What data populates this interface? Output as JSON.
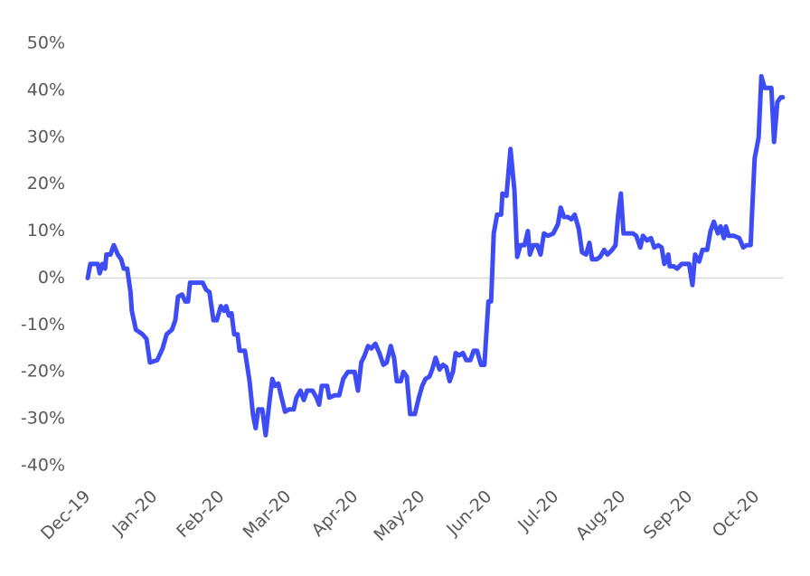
{
  "chart_data": {
    "type": "line",
    "x": [
      0,
      0.04,
      0.09,
      0.15,
      0.18,
      0.22,
      0.26,
      0.28,
      0.34,
      0.39,
      0.45,
      0.5,
      0.54,
      0.59,
      0.64,
      0.66,
      0.72,
      0.82,
      0.88,
      0.93,
      1.04,
      1.12,
      1.18,
      1.26,
      1.31,
      1.35,
      1.41,
      1.46,
      1.5,
      1.53,
      1.66,
      1.72,
      1.77,
      1.82,
      1.88,
      1.93,
      1.99,
      2.04,
      2.07,
      2.11,
      2.15,
      2.19,
      2.24,
      2.27,
      2.35,
      2.42,
      2.47,
      2.51,
      2.55,
      2.61,
      2.66,
      2.72,
      2.76,
      2.8,
      2.85,
      2.89,
      2.95,
      3.01,
      3.08,
      3.12,
      3.18,
      3.23,
      3.28,
      3.36,
      3.42,
      3.46,
      3.5,
      3.58,
      3.61,
      3.69,
      3.76,
      3.82,
      3.89,
      3.99,
      4.04,
      4.09,
      4.14,
      4.19,
      4.24,
      4.3,
      4.36,
      4.42,
      4.47,
      4.53,
      4.58,
      4.62,
      4.68,
      4.72,
      4.77,
      4.82,
      4.89,
      4.95,
      5,
      5.05,
      5.11,
      5.15,
      5.2,
      5.26,
      5.31,
      5.36,
      5.41,
      5.46,
      5.5,
      5.55,
      5.61,
      5.66,
      5.72,
      5.77,
      5.82,
      5.88,
      5.93,
      5.99,
      6.03,
      6.07,
      6.12,
      6.18,
      6.2,
      6.26,
      6.32,
      6.38,
      6.42,
      6.47,
      6.53,
      6.58,
      6.61,
      6.66,
      6.72,
      6.77,
      6.82,
      6.88,
      6.96,
      7.03,
      7.07,
      7.12,
      7.18,
      7.23,
      7.28,
      7.34,
      7.39,
      7.45,
      7.5,
      7.54,
      7.61,
      7.66,
      7.72,
      7.77,
      7.84,
      7.89,
      7.93,
      7.97,
      8.01,
      8.07,
      8.15,
      8.2,
      8.26,
      8.3,
      8.36,
      8.42,
      8.47,
      8.53,
      8.58,
      8.62,
      8.68,
      8.7,
      8.76,
      8.81,
      8.88,
      8.93,
      8.99,
      9.04,
      9.08,
      9.14,
      9.19,
      9.26,
      9.31,
      9.36,
      9.42,
      9.46,
      9.51,
      9.54,
      9.58,
      9.66,
      9.74,
      9.8,
      9.85,
      9.91,
      9.93,
      9.97,
      10.03,
      10.07,
      10.12,
      10.18,
      10.22,
      10.26,
      10.31,
      10.36,
      10.39
    ],
    "series": [
      {
        "color": "#3d4cf5",
        "values": [
          0,
          3,
          3,
          3,
          1,
          3,
          2,
          5,
          5,
          7,
          5,
          4,
          2,
          2,
          -3,
          -7,
          -11,
          -12,
          -13,
          -18,
          -17.5,
          -15,
          -12,
          -11,
          -9,
          -4,
          -3.5,
          -5,
          -5,
          -1,
          -1,
          -1,
          -2.5,
          -3,
          -9,
          -9,
          -6,
          -7,
          -6,
          -8,
          -7.5,
          -12,
          -12,
          -15.5,
          -15.5,
          -22,
          -29,
          -32,
          -28,
          -28,
          -33.5,
          -26,
          -21.5,
          -23,
          -22.5,
          -25,
          -28.5,
          -28,
          -28,
          -25.5,
          -24,
          -26,
          -24,
          -24,
          -25.5,
          -27,
          -23,
          -23,
          -25.5,
          -25,
          -25,
          -21.5,
          -20,
          -20,
          -24,
          -18,
          -16.5,
          -14.5,
          -15,
          -14,
          -16,
          -18.5,
          -18,
          -14.5,
          -17,
          -22,
          -22,
          -20,
          -21,
          -29,
          -29,
          -25.5,
          -23,
          -21.5,
          -21,
          -19.5,
          -17,
          -19.5,
          -18.5,
          -19,
          -22,
          -20,
          -16,
          -16.5,
          -16,
          -17.5,
          -17.5,
          -15.5,
          -15.5,
          -18.5,
          -18.5,
          -5,
          -5,
          9.5,
          13.5,
          13.5,
          18,
          17.5,
          27.5,
          18.5,
          4.5,
          7,
          7,
          10,
          5,
          7,
          7,
          5,
          9.5,
          9,
          9.5,
          11.5,
          15,
          13,
          13,
          12.5,
          13.5,
          10.5,
          5.5,
          5,
          7.5,
          4,
          4,
          4.5,
          6,
          5,
          6,
          7,
          13.5,
          18,
          9.5,
          9.5,
          9.5,
          9,
          6.5,
          9,
          8,
          8.5,
          6.5,
          7,
          6.5,
          3,
          5,
          2.5,
          2.5,
          2,
          3,
          3,
          3,
          -1.5,
          5,
          3.5,
          6,
          6,
          10,
          12,
          9.5,
          11,
          8.5,
          11,
          9,
          9,
          8.5,
          6.5,
          7,
          7,
          13.5,
          25.5,
          30,
          43,
          40.5,
          40.5,
          40.5,
          29,
          37.5,
          38.5,
          38.5
        ]
      }
    ],
    "xlim": [
      0,
      10.4
    ],
    "xticks": [
      {
        "value": 0,
        "label": "Dec-19"
      },
      {
        "value": 1,
        "label": "Jan-20"
      },
      {
        "value": 2,
        "label": "Feb-20"
      },
      {
        "value": 3,
        "label": "Mar-20"
      },
      {
        "value": 4,
        "label": "Apr-20"
      },
      {
        "value": 5,
        "label": "May-20"
      },
      {
        "value": 6,
        "label": "Jun-20"
      },
      {
        "value": 7,
        "label": "Jul-20"
      },
      {
        "value": 8,
        "label": "Aug-20"
      },
      {
        "value": 9,
        "label": "Sep-20"
      },
      {
        "value": 10,
        "label": "Oct-20"
      }
    ],
    "ylim": [
      -40,
      50
    ],
    "yticks": [
      {
        "value": -40,
        "label": "-40%"
      },
      {
        "value": -30,
        "label": "-30%"
      },
      {
        "value": -20,
        "label": "-20%"
      },
      {
        "value": -10,
        "label": "-10%"
      },
      {
        "value": 0,
        "label": "0%"
      },
      {
        "value": 10,
        "label": "10%"
      },
      {
        "value": 20,
        "label": "20%"
      },
      {
        "value": 30,
        "label": "30%"
      },
      {
        "value": 40,
        "label": "40%"
      },
      {
        "value": 50,
        "label": "50%"
      }
    ],
    "grid": false
  }
}
